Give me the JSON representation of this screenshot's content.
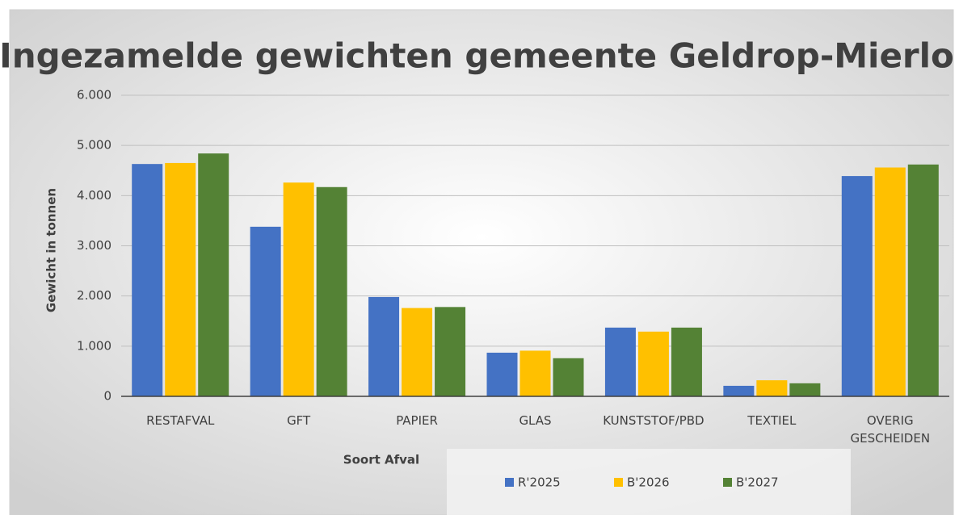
{
  "chart_data": {
    "type": "bar",
    "title": "Ingezamelde gewichten gemeente Geldrop-Mierlo",
    "y_label": "Gewicht in tonnen",
    "x_label": "Soort Afval",
    "categories": [
      "RESTAFVAL",
      "GFT",
      "PAPIER",
      "GLAS",
      "KUNSTSTOF/PBD",
      "TEXTIEL",
      "OVERIG GESCHEIDEN"
    ],
    "series": [
      {
        "name": "R'2025",
        "color": "#4472c4",
        "values": [
          4630,
          3380,
          1980,
          870,
          1370,
          210,
          4390
        ]
      },
      {
        "name": "B'2026",
        "color": "#ffc000",
        "values": [
          4650,
          4260,
          1760,
          910,
          1290,
          320,
          4560
        ]
      },
      {
        "name": "B'2027",
        "color": "#548235",
        "values": [
          4840,
          4170,
          1780,
          760,
          1370,
          260,
          4620
        ]
      }
    ],
    "ylim": [
      0,
      6000
    ],
    "yticks": [
      0,
      {
        "value": 1000,
        "label": "1.000"
      },
      {
        "value": 2000,
        "label": "2.000"
      },
      {
        "value": 3000,
        "label": "3.000"
      },
      {
        "value": 4000,
        "label": "4.000"
      },
      {
        "value": 5000,
        "label": "5.000"
      },
      {
        "value": 6000,
        "label": "6.000"
      }
    ],
    "grid": true,
    "legend": "bottom"
  }
}
